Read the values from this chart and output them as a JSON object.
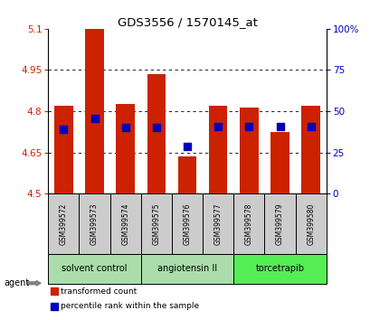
{
  "title": "GDS3556 / 1570145_at",
  "samples": [
    "GSM399572",
    "GSM399573",
    "GSM399574",
    "GSM399575",
    "GSM399576",
    "GSM399577",
    "GSM399578",
    "GSM399579",
    "GSM399580"
  ],
  "red_values": [
    4.82,
    5.1,
    4.825,
    4.935,
    4.635,
    4.82,
    4.815,
    4.725,
    4.82
  ],
  "blue_values": [
    4.735,
    4.775,
    4.74,
    4.74,
    4.672,
    4.745,
    4.745,
    4.745,
    4.745
  ],
  "ymin": 4.5,
  "ymax": 5.1,
  "yticks_left": [
    4.5,
    4.65,
    4.8,
    4.95,
    5.1
  ],
  "yticks_right": [
    0,
    25,
    50,
    75,
    100
  ],
  "bar_color": "#cc2200",
  "blue_color": "#0000bb",
  "bar_width": 0.6,
  "blue_size": 30,
  "legend_red_label": "transformed count",
  "legend_blue_label": "percentile rank within the sample",
  "bg_color": "#ffffff",
  "grid_color": "#000000",
  "tick_color_left": "#cc2200",
  "tick_color_right": "#0000bb",
  "sample_bg": "#cccccc",
  "group_color_light": "#aaddaa",
  "group_color_dark": "#55ee55",
  "group_border_color": "#000000",
  "group_labels": [
    "solvent control",
    "angiotensin II",
    "torcetrapib"
  ],
  "group_starts": [
    0,
    3,
    6
  ],
  "group_ends": [
    2,
    5,
    8
  ],
  "group_dark": [
    false,
    false,
    true
  ]
}
